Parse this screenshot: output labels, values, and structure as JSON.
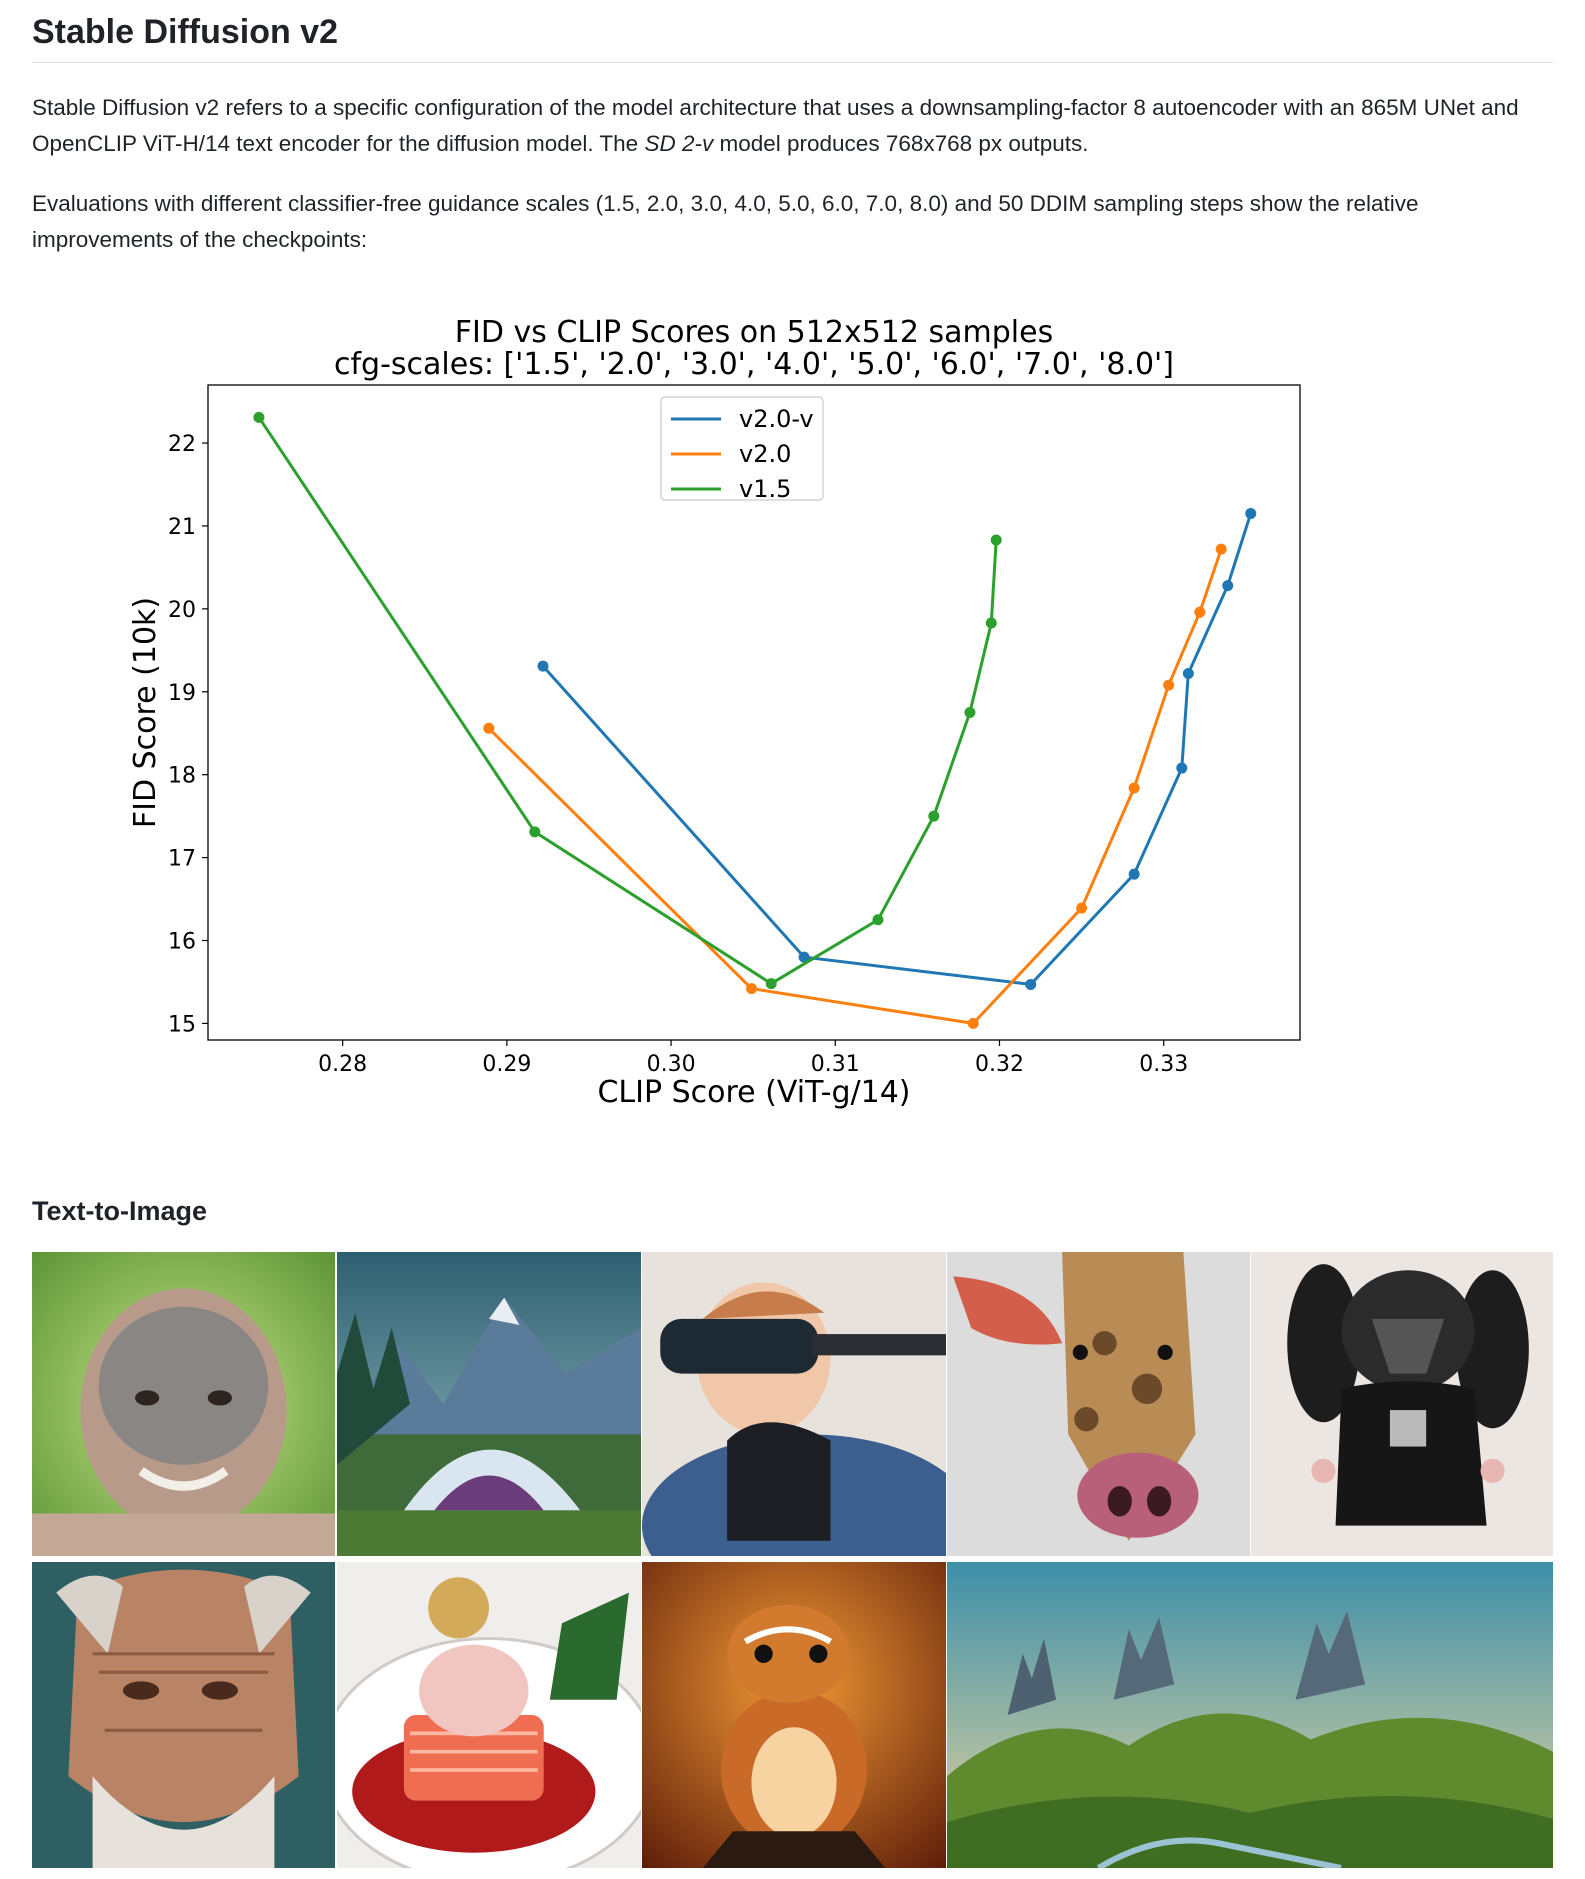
{
  "heading": "Stable Diffusion v2",
  "intro": {
    "p1_a": "Stable Diffusion v2 refers to a specific configuration of the model architecture that uses a downsampling-factor 8 autoencoder with an 865M UNet and OpenCLIP ViT-H/14 text encoder for the diffusion model. The ",
    "p1_em": "SD 2-v",
    "p1_b": " model produces 768x768 px outputs.",
    "p2": "Evaluations with different classifier-free guidance scales (1.5, 2.0, 3.0, 4.0, 5.0, 6.0, 7.0, 8.0) and 50 DDIM sampling steps show the relative improvements of the checkpoints:"
  },
  "chart_data": {
    "type": "line",
    "title": "FID vs CLIP Scores on 512x512 samples",
    "subtitle": "cfg-scales: ['1.5', '2.0', '3.0', '4.0', '5.0', '6.0', '7.0', '8.0']",
    "xlabel": "CLIP Score (ViT-g/14)",
    "ylabel": "FID Score (10k)",
    "xlim": [
      0.2718,
      0.3383
    ],
    "ylim": [
      14.8,
      22.7
    ],
    "xticks": [
      "0.28",
      "0.29",
      "0.30",
      "0.31",
      "0.32",
      "0.33"
    ],
    "yticks": [
      "15",
      "16",
      "17",
      "18",
      "19",
      "20",
      "21",
      "22"
    ],
    "grid": false,
    "legend_position": "upper center",
    "series": [
      {
        "name": "v2.0-v",
        "color": "#1f77b4",
        "x": [
          0.2922,
          0.3081,
          0.3219,
          0.3282,
          0.3311,
          0.3315,
          0.3339,
          0.3353
        ],
        "y": [
          19.31,
          15.8,
          15.47,
          16.8,
          18.08,
          19.22,
          20.28,
          21.15
        ]
      },
      {
        "name": "v2.0",
        "color": "#ff7f0e",
        "x": [
          0.2889,
          0.3049,
          0.3184,
          0.325,
          0.3282,
          0.3303,
          0.3322,
          0.3335
        ],
        "y": [
          18.56,
          15.42,
          15.0,
          16.39,
          17.84,
          19.08,
          19.96,
          20.72
        ]
      },
      {
        "name": "v1.5",
        "color": "#2ca02c",
        "x": [
          0.2749,
          0.2917,
          0.3061,
          0.3126,
          0.316,
          0.3182,
          0.3195,
          0.3198
        ],
        "y": [
          22.31,
          17.31,
          15.48,
          16.25,
          17.5,
          18.75,
          19.83,
          20.83
        ]
      }
    ]
  },
  "section": {
    "heading": "Text-to-Image"
  },
  "gallery": [
    {
      "name": "baby-mud-face-image"
    },
    {
      "name": "mountain-dome-image"
    },
    {
      "name": "baby-vr-headset-image"
    },
    {
      "name": "giraffe-pig-image"
    },
    {
      "name": "darth-vader-plush-image"
    },
    {
      "name": "old-man-portrait-image"
    },
    {
      "name": "salmon-ice-cream-image"
    },
    {
      "name": "chipmunk-fire-image"
    },
    {
      "name": "castle-landscape-image"
    }
  ]
}
